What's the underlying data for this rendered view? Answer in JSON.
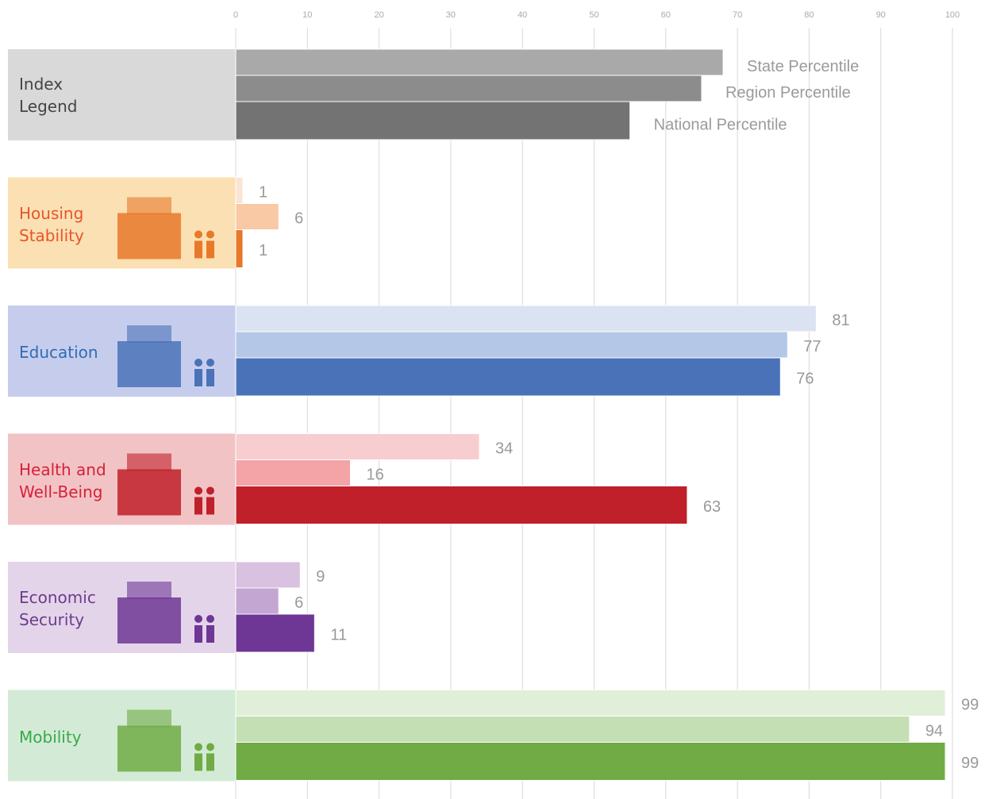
{
  "chart_data": {
    "type": "bar",
    "orientation": "horizontal",
    "xlim": [
      0,
      100
    ],
    "xticks": [
      0,
      10,
      20,
      30,
      40,
      50,
      60,
      70,
      80,
      90,
      100
    ],
    "grid": true,
    "legend": {
      "title": "Index Legend",
      "panel_color": "#d9d9d9",
      "text_color": "#444444",
      "values": [
        68,
        65,
        55
      ],
      "colors": [
        "#a9a9a9",
        "#8c8c8c",
        "#737373"
      ]
    },
    "categories": [
      "Housing Stability",
      "Education",
      "Health and Well-Being",
      "Economic Security",
      "Mobility"
    ],
    "panel_colors": [
      "#fbe0b3",
      "#c6cdec",
      "#f2c3c4",
      "#e4d4ea",
      "#d3ebd6"
    ],
    "text_colors": [
      "#e8542a",
      "#2f6cb3",
      "#d6213b",
      "#6a3d8c",
      "#3aa84a"
    ],
    "series": [
      {
        "name": "State Percentile",
        "values": [
          1,
          81,
          34,
          9,
          99
        ],
        "colors": [
          "#fbe4d4",
          "#dbe3f2",
          "#f8cdd0",
          "#d8c2e0",
          "#e0efd7"
        ]
      },
      {
        "name": "Region Percentile",
        "values": [
          6,
          77,
          16,
          6,
          94
        ],
        "colors": [
          "#f9c8a5",
          "#b4c7e7",
          "#f4a3a6",
          "#c3a6d2",
          "#c5dfb4"
        ]
      },
      {
        "name": "National Percentile",
        "values": [
          1,
          76,
          63,
          11,
          99
        ],
        "colors": [
          "#e8782a",
          "#4a72b8",
          "#c0202a",
          "#6e3795",
          "#70ab45"
        ]
      }
    ]
  }
}
